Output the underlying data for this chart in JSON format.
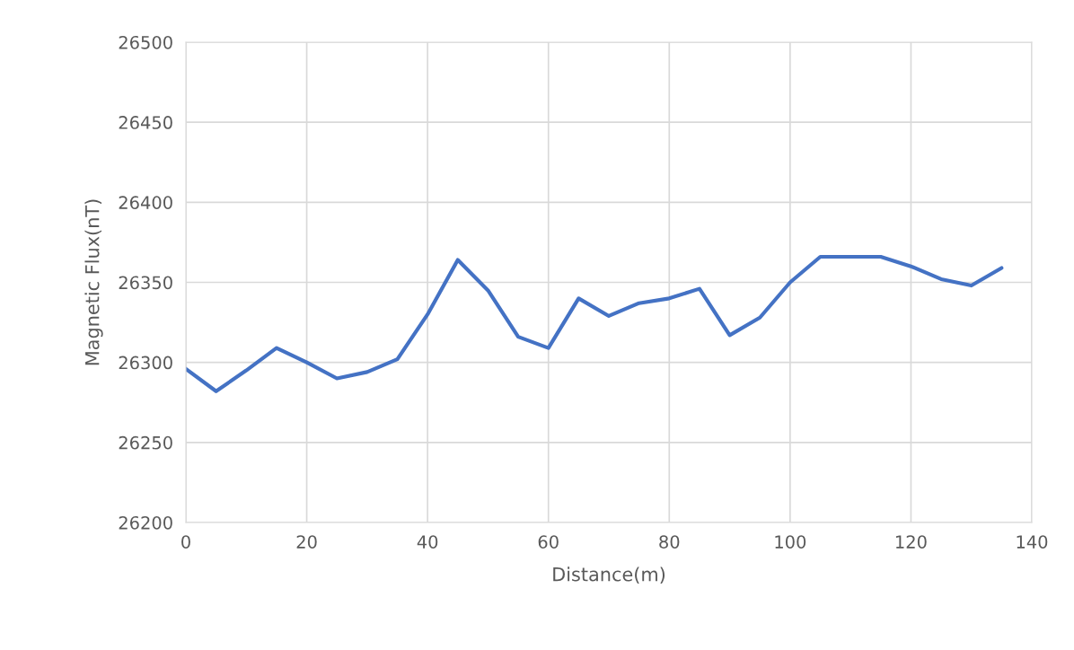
{
  "chart_data": {
    "type": "line",
    "xlabel": "Distance(m)",
    "ylabel": "Magnetic Flux(nT)",
    "x": [
      0,
      5,
      10,
      15,
      20,
      25,
      30,
      35,
      40,
      45,
      50,
      55,
      60,
      65,
      70,
      75,
      80,
      85,
      90,
      95,
      100,
      105,
      110,
      115,
      120,
      125,
      130,
      135
    ],
    "series": [
      {
        "color": "#4472c4",
        "values": [
          26296,
          26282,
          26295,
          26309,
          26300,
          26290,
          26294,
          26302,
          26330,
          26364,
          26345,
          26316,
          26309,
          26340,
          26329,
          26337,
          26340,
          26346,
          26317,
          26328,
          26350,
          26366,
          26366,
          26366,
          26360,
          26352,
          26348,
          26359
        ]
      }
    ],
    "xlim": [
      0,
      140
    ],
    "xticks": [
      0,
      20,
      40,
      60,
      80,
      100,
      120,
      140
    ],
    "ylim": [
      26200,
      26500
    ],
    "yticks": [
      26200,
      26250,
      26300,
      26350,
      26400,
      26450,
      26500
    ],
    "grid": true,
    "marker": "none",
    "line_style": "solid"
  }
}
